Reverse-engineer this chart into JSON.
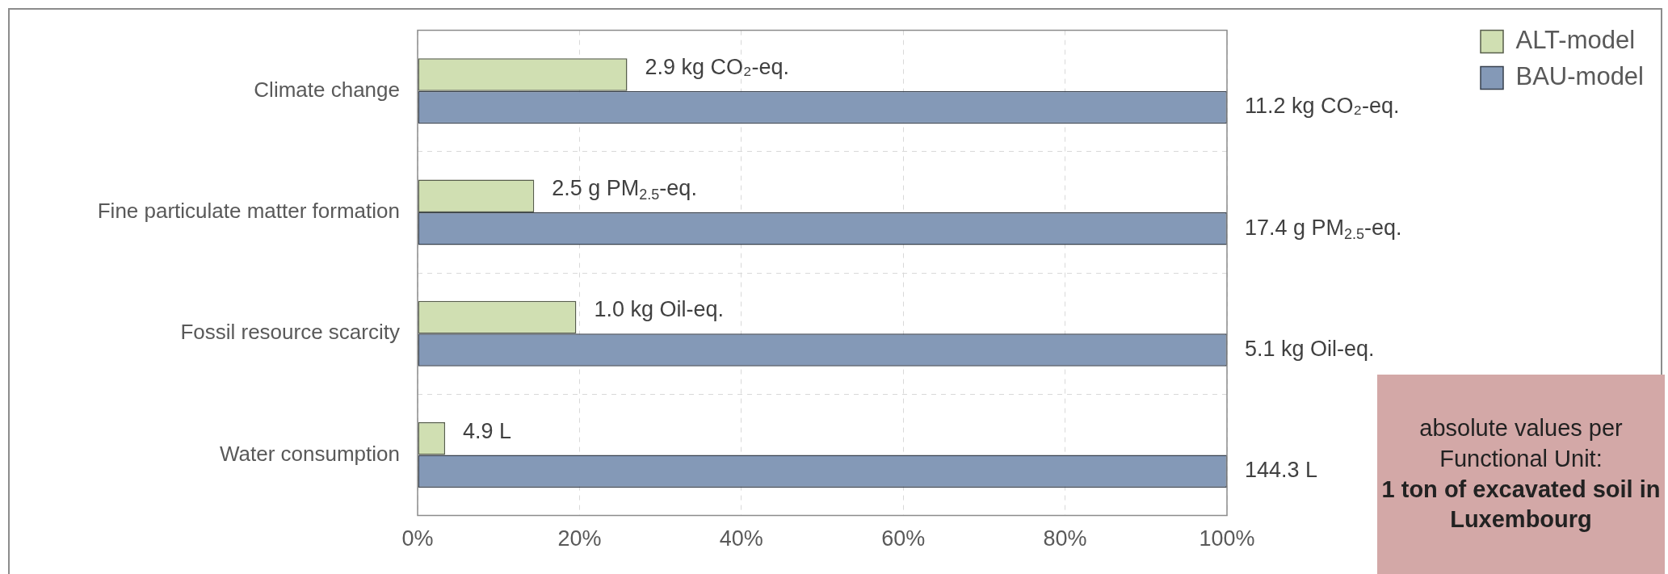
{
  "chart_data": {
    "type": "bar",
    "orientation": "horizontal",
    "categories": [
      "Climate change",
      "Fine particulate matter formation",
      "Fossil resource scarcity",
      "Water consumption"
    ],
    "series": [
      {
        "name": "ALT-model",
        "color": "#d0dfb2",
        "values": [
          25.9,
          14.4,
          19.6,
          3.4
        ]
      },
      {
        "name": "BAU-model",
        "color": "#8499b7",
        "values": [
          100,
          100,
          100,
          100
        ]
      }
    ],
    "xlim": [
      0,
      100
    ],
    "xticks": [
      {
        "value": 0,
        "label": "0%"
      },
      {
        "value": 20,
        "label": "20%"
      },
      {
        "value": 40,
        "label": "40%"
      },
      {
        "value": 60,
        "label": "60%"
      },
      {
        "value": 80,
        "label": "80%"
      },
      {
        "value": 100,
        "label": "100%"
      }
    ],
    "grid": true,
    "legend": "right",
    "annotations": [
      {
        "text": "2.9 kg CO₂-eq.",
        "x": 25.9,
        "y": "Climate change"
      },
      {
        "text": "2.5 g PM$_{2.5}$-eq.",
        "x": 14.4,
        "y": "Fine particulate matter formation"
      },
      {
        "text": "1.0 kg Oil-eq.",
        "x": 19.6,
        "y": "Fossil resource scarcity"
      },
      {
        "text": "4.9 L",
        "x": 3.4,
        "y": "Water consumption"
      },
      "11.2 kg CO₂-eq.",
      "17.4 g PM$_{2.5}$-eq.",
      "5.1 kg Oil-eq.",
      "144.3 L",
      "absolute values per Functional Unit:",
      "1 ton of excavated soil in Luxembourg"
    ]
  }
}
